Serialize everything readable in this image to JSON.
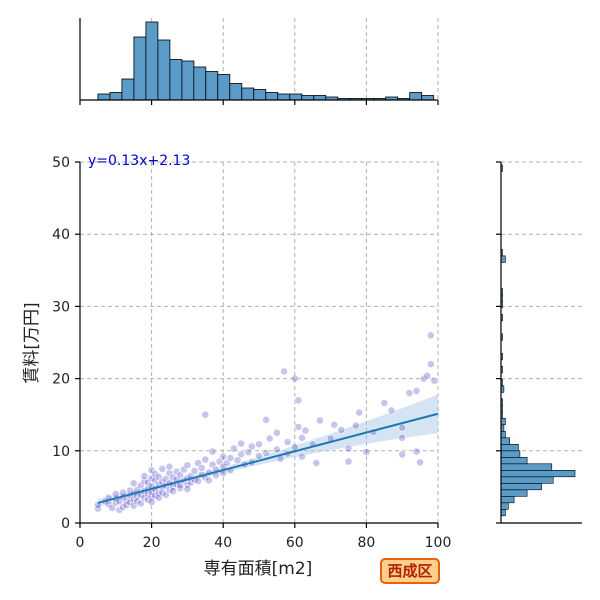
{
  "chart_data": {
    "type": "scatter",
    "xlabel": "専有面積[m2]",
    "ylabel": "賃料[万円]",
    "xlim": [
      0,
      100
    ],
    "ylim": [
      0,
      50
    ],
    "xticks": [
      "0",
      "20",
      "40",
      "60",
      "80",
      "100"
    ],
    "yticks": [
      "0",
      "10",
      "20",
      "30",
      "40",
      "50"
    ],
    "grid": true,
    "regression": {
      "equation": "y=0.13x+2.13",
      "slope": 0.13,
      "intercept": 2.13,
      "x_range": [
        5,
        100
      ],
      "color": "#1f77b4",
      "ci_color": "#a9c9e6"
    },
    "points_color": "#3a2fc0",
    "points": [
      [
        5,
        2
      ],
      [
        5,
        2.5
      ],
      [
        7,
        3
      ],
      [
        8,
        2.6
      ],
      [
        8,
        3.5
      ],
      [
        9,
        2.1
      ],
      [
        10,
        2.8
      ],
      [
        10,
        3.4
      ],
      [
        10,
        4
      ],
      [
        11,
        1.8
      ],
      [
        11,
        3
      ],
      [
        12,
        2.2
      ],
      [
        12,
        3.6
      ],
      [
        12,
        4.2
      ],
      [
        13,
        3.1
      ],
      [
        13,
        2.5
      ],
      [
        14,
        3.8
      ],
      [
        14,
        4.5
      ],
      [
        14,
        2.9
      ],
      [
        15,
        3.3
      ],
      [
        15,
        4.1
      ],
      [
        15,
        5.5
      ],
      [
        15,
        2.4
      ],
      [
        16,
        3.7
      ],
      [
        16,
        4.6
      ],
      [
        16,
        3
      ],
      [
        17,
        3.9
      ],
      [
        17,
        5.2
      ],
      [
        17,
        2.7
      ],
      [
        18,
        4.4
      ],
      [
        18,
        3.5
      ],
      [
        18,
        5.8
      ],
      [
        18,
        6.5
      ],
      [
        19,
        3.2
      ],
      [
        19,
        4.8
      ],
      [
        19,
        5.6
      ],
      [
        19,
        4
      ],
      [
        20,
        3.6
      ],
      [
        20,
        4.3
      ],
      [
        20,
        5.1
      ],
      [
        20,
        6.2
      ],
      [
        20,
        7.3
      ],
      [
        20,
        2.9
      ],
      [
        21,
        4.7
      ],
      [
        21,
        3.8
      ],
      [
        21,
        5.9
      ],
      [
        21,
        6.8
      ],
      [
        22,
        4.1
      ],
      [
        22,
        5.3
      ],
      [
        22,
        6.4
      ],
      [
        22,
        3.5
      ],
      [
        23,
        4.9
      ],
      [
        23,
        5.7
      ],
      [
        23,
        7.5
      ],
      [
        23,
        4.2
      ],
      [
        24,
        5.2
      ],
      [
        24,
        6.1
      ],
      [
        24,
        3.9
      ],
      [
        25,
        4.6
      ],
      [
        25,
        5.5
      ],
      [
        25,
        6.9
      ],
      [
        25,
        7.8
      ],
      [
        26,
        5
      ],
      [
        26,
        6.3
      ],
      [
        26,
        4.4
      ],
      [
        27,
        5.4
      ],
      [
        27,
        7.1
      ],
      [
        27,
        6
      ],
      [
        28,
        4.8
      ],
      [
        28,
        6.6
      ],
      [
        28,
        5.2
      ],
      [
        29,
        5.9
      ],
      [
        29,
        7.4
      ],
      [
        30,
        5.3
      ],
      [
        30,
        6.2
      ],
      [
        30,
        8
      ],
      [
        30,
        4.7
      ],
      [
        31,
        6.5
      ],
      [
        31,
        5.6
      ],
      [
        32,
        7.2
      ],
      [
        32,
        6
      ],
      [
        33,
        5.8
      ],
      [
        33,
        8.3
      ],
      [
        34,
        6.7
      ],
      [
        34,
        7.6
      ],
      [
        35,
        6.3
      ],
      [
        35,
        8.8
      ],
      [
        35,
        15
      ],
      [
        36,
        7
      ],
      [
        36,
        5.9
      ],
      [
        37,
        8.1
      ],
      [
        37,
        9.9
      ],
      [
        38,
        7.4
      ],
      [
        38,
        6.6
      ],
      [
        39,
        8.5
      ],
      [
        40,
        7.8
      ],
      [
        40,
        9.2
      ],
      [
        40,
        6.9
      ],
      [
        41,
        8.3
      ],
      [
        42,
        9
      ],
      [
        42,
        7.3
      ],
      [
        43,
        10.3
      ],
      [
        44,
        8.7
      ],
      [
        45,
        9.5
      ],
      [
        45,
        11
      ],
      [
        46,
        8.1
      ],
      [
        47,
        9.8
      ],
      [
        48,
        10.6
      ],
      [
        48,
        8.4
      ],
      [
        50,
        9.3
      ],
      [
        50,
        10.9
      ],
      [
        52,
        14.3
      ],
      [
        52,
        9.7
      ],
      [
        53,
        11.7
      ],
      [
        55,
        10.2
      ],
      [
        55,
        12.5
      ],
      [
        56,
        8.9
      ],
      [
        57,
        21
      ],
      [
        58,
        11.2
      ],
      [
        58,
        9.6
      ],
      [
        60,
        20
      ],
      [
        60,
        10.5
      ],
      [
        61,
        17
      ],
      [
        61,
        13.3
      ],
      [
        62,
        11.8
      ],
      [
        62,
        9.2
      ],
      [
        63,
        12.8
      ],
      [
        65,
        10.9
      ],
      [
        66,
        8.3
      ],
      [
        67,
        14.2
      ],
      [
        70,
        11.7
      ],
      [
        71,
        13.6
      ],
      [
        73,
        12.9
      ],
      [
        75,
        8.5
      ],
      [
        75,
        10.3
      ],
      [
        77,
        13.5
      ],
      [
        78,
        15.3
      ],
      [
        80,
        9.8
      ],
      [
        82,
        12.6
      ],
      [
        85,
        16.6
      ],
      [
        87,
        15.6
      ],
      [
        90,
        9.5
      ],
      [
        90,
        11.8
      ],
      [
        90,
        13.2
      ],
      [
        92,
        18
      ],
      [
        94,
        9.9
      ],
      [
        94,
        18.3
      ],
      [
        95,
        8.4
      ],
      [
        96,
        20
      ],
      [
        97,
        20.4
      ],
      [
        98,
        22
      ],
      [
        98,
        26
      ],
      [
        99,
        19.7
      ]
    ],
    "x_hist": {
      "color": "#5b9bc8",
      "bin_start": 5,
      "bin_width": 3.35,
      "counts": [
        4,
        5,
        14,
        42,
        52,
        40,
        27,
        26,
        22,
        19,
        17,
        11,
        8,
        7,
        5,
        4,
        4,
        3,
        3,
        2,
        1,
        1,
        1,
        1,
        2,
        1,
        5,
        3
      ]
    },
    "y_hist": {
      "color": "#5b9bc8",
      "bin_start": 1,
      "bin_width": 0.9,
      "counts": [
        3,
        5,
        9,
        18,
        28,
        36,
        51,
        35,
        18,
        13,
        12,
        6,
        3,
        2,
        3,
        1,
        1,
        1,
        0,
        2,
        1,
        0,
        1,
        0,
        1,
        0,
        0,
        1,
        0,
        0,
        1,
        0,
        1,
        1,
        1,
        0,
        0,
        0,
        0,
        3,
        1,
        0,
        0,
        0,
        0,
        0,
        0,
        0,
        0,
        0,
        0,
        0,
        0,
        1,
        0
      ]
    }
  },
  "badge": {
    "label": "西成区"
  }
}
